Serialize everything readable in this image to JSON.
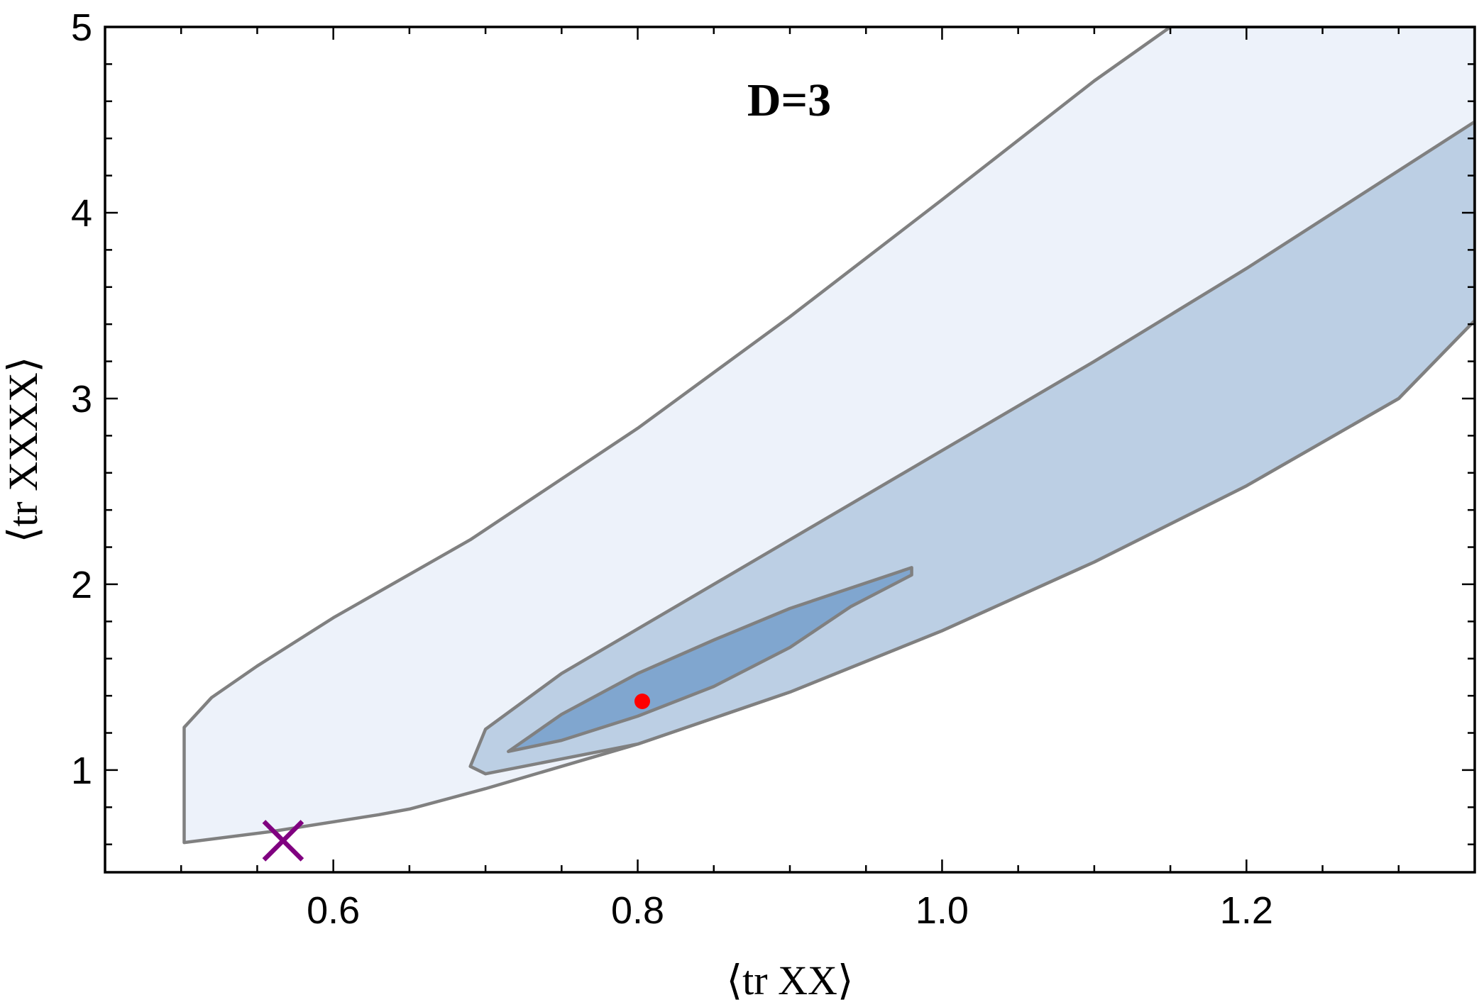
{
  "chart_data": {
    "type": "area",
    "title": "",
    "annotation": "D=3",
    "xlabel": "⟨tr XX⟩",
    "ylabel": "⟨tr XXXX⟩",
    "xlim": [
      0.45,
      1.35
    ],
    "ylim": [
      0.45,
      5.0
    ],
    "xticks": [
      0.6,
      0.8,
      1.0,
      1.2
    ],
    "xtick_labels": [
      "0.6",
      "0.8",
      "1.0",
      "1.2"
    ],
    "yticks": [
      1,
      2,
      3,
      4,
      5
    ],
    "ytick_labels": [
      "1",
      "2",
      "3",
      "4",
      "5"
    ],
    "grid": false,
    "colors": {
      "outer_region": "#edf2fa",
      "middle_region": "#bccfe4",
      "inner_region": "#80a6cf",
      "region_edge": "#808080",
      "point_marker": "#ff0000",
      "cross_marker": "#800080"
    },
    "regions": [
      {
        "level": "outer",
        "polygon": [
          [
            0.502,
            0.61
          ],
          [
            0.56,
            0.67
          ],
          [
            0.63,
            0.76
          ],
          [
            0.65,
            0.79
          ],
          [
            0.7,
            0.9
          ],
          [
            0.8,
            1.14
          ],
          [
            0.9,
            1.42
          ],
          [
            1.0,
            1.75
          ],
          [
            1.1,
            2.12
          ],
          [
            1.2,
            2.53
          ],
          [
            1.3,
            3.0
          ],
          [
            1.35,
            3.42
          ],
          [
            1.35,
            5.0
          ],
          [
            1.15,
            5.0
          ],
          [
            1.1,
            4.71
          ],
          [
            1.0,
            4.07
          ],
          [
            0.9,
            3.44
          ],
          [
            0.8,
            2.84
          ],
          [
            0.69,
            2.24
          ],
          [
            0.6,
            1.82
          ],
          [
            0.55,
            1.56
          ],
          [
            0.52,
            1.39
          ],
          [
            0.502,
            1.23
          ]
        ]
      },
      {
        "level": "middle",
        "polygon": [
          [
            0.69,
            1.02
          ],
          [
            0.7,
            0.98
          ],
          [
            0.8,
            1.14
          ],
          [
            0.9,
            1.42
          ],
          [
            1.0,
            1.75
          ],
          [
            1.1,
            2.12
          ],
          [
            1.2,
            2.53
          ],
          [
            1.3,
            3.0
          ],
          [
            1.35,
            3.42
          ],
          [
            1.35,
            4.49
          ],
          [
            1.2,
            3.7
          ],
          [
            1.1,
            3.2
          ],
          [
            1.0,
            2.72
          ],
          [
            0.9,
            2.24
          ],
          [
            0.8,
            1.76
          ],
          [
            0.75,
            1.52
          ],
          [
            0.7,
            1.22
          ]
        ]
      },
      {
        "level": "inner",
        "polygon": [
          [
            0.715,
            1.1
          ],
          [
            0.75,
            1.16
          ],
          [
            0.8,
            1.29
          ],
          [
            0.85,
            1.45
          ],
          [
            0.9,
            1.66
          ],
          [
            0.94,
            1.88
          ],
          [
            0.98,
            2.05
          ],
          [
            0.98,
            2.09
          ],
          [
            0.9,
            1.87
          ],
          [
            0.85,
            1.7
          ],
          [
            0.8,
            1.52
          ],
          [
            0.75,
            1.3
          ]
        ]
      }
    ],
    "markers": [
      {
        "symbol": "dot",
        "x": 0.803,
        "y": 1.37,
        "color": "#ff0000"
      },
      {
        "symbol": "cross",
        "x": 0.567,
        "y": 0.62,
        "color": "#800080"
      }
    ]
  }
}
